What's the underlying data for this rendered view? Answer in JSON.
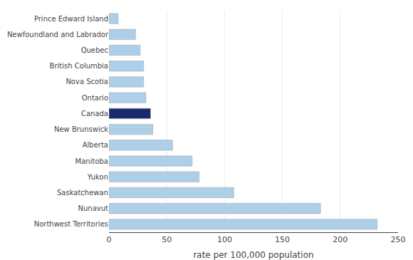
{
  "chart_data": {
    "type": "bar",
    "orientation": "horizontal",
    "categories": [
      "Northwest Territories",
      "Nunavut",
      "Saskatchewan",
      "Yukon",
      "Manitoba",
      "Alberta",
      "New Brunswick",
      "Canada",
      "Ontario",
      "Nova Scotia",
      "British Columbia",
      "Quebec",
      "Newfoundland and Labrador",
      "Prince Edward Island"
    ],
    "values": [
      232,
      183,
      108,
      78,
      72,
      55,
      38,
      36,
      32,
      30,
      30,
      27,
      23,
      8
    ],
    "colors": [
      "#aecfe8",
      "#aecfe8",
      "#aecfe8",
      "#aecfe8",
      "#aecfe8",
      "#aecfe8",
      "#aecfe8",
      "#1a2a6c",
      "#aecfe8",
      "#aecfe8",
      "#aecfe8",
      "#aecfe8",
      "#aecfe8",
      "#aecfe8"
    ],
    "xlabel": "rate per 100,000 population",
    "xlim": [
      0,
      250
    ],
    "xticks": [
      0,
      50,
      100,
      150,
      200,
      250
    ],
    "grid": true
  }
}
